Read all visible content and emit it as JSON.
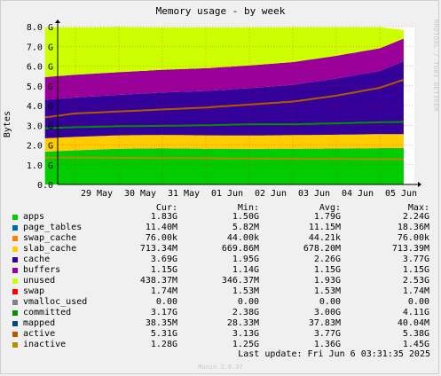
{
  "title": "Memory usage - by week",
  "side_credit": "RRDTOOL / TOBI OETIKER",
  "footer": {
    "last_update": "Last update: Fri Jun  6 03:31:35 2025",
    "version": "Munin 2.0.37"
  },
  "legend_headers": {
    "cur": "Cur:",
    "min": "Min:",
    "avg": "Avg:",
    "max": "Max:"
  },
  "legend": [
    {
      "name": "apps",
      "color": "#00cc00",
      "cur": "1.83G",
      "min": "1.50G",
      "avg": "1.79G",
      "max": "2.24G"
    },
    {
      "name": "page_tables",
      "color": "#0066b3",
      "cur": "11.40M",
      "min": "5.82M",
      "avg": "11.15M",
      "max": "18.36M"
    },
    {
      "name": "swap_cache",
      "color": "#ff8000",
      "cur": "76.00k",
      "min": "44.00k",
      "avg": "44.21k",
      "max": "76.00k"
    },
    {
      "name": "slab_cache",
      "color": "#ffcc00",
      "cur": "713.34M",
      "min": "669.86M",
      "avg": "678.20M",
      "max": "713.39M"
    },
    {
      "name": "cache",
      "color": "#330099",
      "cur": "3.69G",
      "min": "1.95G",
      "avg": "2.26G",
      "max": "3.77G"
    },
    {
      "name": "buffers",
      "color": "#990099",
      "cur": "1.15G",
      "min": "1.14G",
      "avg": "1.15G",
      "max": "1.15G"
    },
    {
      "name": "unused",
      "color": "#ccff00",
      "cur": "438.37M",
      "min": "346.37M",
      "avg": "1.93G",
      "max": "2.53G"
    },
    {
      "name": "swap",
      "color": "#ff0000",
      "cur": "1.74M",
      "min": "1.53M",
      "avg": "1.53M",
      "max": "1.74M"
    },
    {
      "name": "vmalloc_used",
      "color": "#808080",
      "cur": "0.00",
      "min": "0.00",
      "avg": "0.00",
      "max": "0.00"
    },
    {
      "name": "committed",
      "color": "#008f00",
      "cur": "3.17G",
      "min": "2.38G",
      "avg": "3.00G",
      "max": "4.11G"
    },
    {
      "name": "mapped",
      "color": "#00487d",
      "cur": "38.35M",
      "min": "28.33M",
      "avg": "37.83M",
      "max": "40.04M"
    },
    {
      "name": "active",
      "color": "#b35a00",
      "cur": "5.31G",
      "min": "3.13G",
      "avg": "3.77G",
      "max": "5.38G"
    },
    {
      "name": "inactive",
      "color": "#b38f00",
      "cur": "1.28G",
      "min": "1.25G",
      "avg": "1.36G",
      "max": "1.45G"
    }
  ],
  "chart_data": {
    "type": "area",
    "title": "Memory usage - by week",
    "ylabel": "Bytes",
    "ylim": [
      0,
      8
    ],
    "y_unit": "G",
    "yticks": [
      "0.0",
      "1.0 G",
      "2.0 G",
      "3.0 G",
      "4.0 G",
      "5.0 G",
      "6.0 G",
      "7.0 G",
      "8.0 G"
    ],
    "xticks": [
      "29 May",
      "30 May",
      "31 May",
      "01 Jun",
      "02 Jun",
      "03 Jun",
      "04 Jun",
      "05 Jun"
    ],
    "x_days": [
      -0.7,
      0,
      1,
      2,
      3,
      4,
      5,
      6,
      7,
      7.55
    ],
    "stacked_series": [
      {
        "name": "apps",
        "color": "#00cc00",
        "values": [
          1.65,
          1.72,
          1.8,
          1.82,
          1.8,
          1.79,
          1.8,
          1.81,
          1.83,
          1.83
        ]
      },
      {
        "name": "page_tables",
        "color": "#0066b3",
        "values": [
          0.011,
          0.011,
          0.011,
          0.011,
          0.011,
          0.011,
          0.011,
          0.011,
          0.011,
          0.011
        ]
      },
      {
        "name": "swap_cache",
        "color": "#ff8000",
        "values": [
          0.0001,
          0.0001,
          0.0001,
          0.0001,
          0.0001,
          0.0001,
          0.0001,
          0.0001,
          0.0001,
          0.0001
        ]
      },
      {
        "name": "slab_cache",
        "color": "#ffcc00",
        "values": [
          0.68,
          0.68,
          0.68,
          0.68,
          0.68,
          0.68,
          0.69,
          0.7,
          0.71,
          0.71
        ]
      },
      {
        "name": "cache",
        "color": "#330099",
        "values": [
          1.95,
          2.0,
          2.05,
          2.15,
          2.25,
          2.4,
          2.55,
          2.85,
          3.2,
          3.69
        ]
      },
      {
        "name": "buffers",
        "color": "#990099",
        "values": [
          1.15,
          1.15,
          1.15,
          1.15,
          1.15,
          1.15,
          1.15,
          1.15,
          1.15,
          1.15
        ]
      },
      {
        "name": "unused",
        "color": "#ccff00",
        "values": [
          2.53,
          2.4,
          2.29,
          2.15,
          2.07,
          1.93,
          1.77,
          1.45,
          1.07,
          0.44
        ]
      }
    ],
    "line_series": [
      {
        "name": "committed",
        "color": "#008f00",
        "values": [
          2.85,
          2.9,
          2.95,
          2.97,
          3.0,
          3.05,
          3.05,
          3.1,
          3.15,
          3.17
        ]
      },
      {
        "name": "active",
        "color": "#b35a00",
        "values": [
          3.4,
          3.6,
          3.7,
          3.8,
          3.9,
          4.05,
          4.2,
          4.5,
          4.9,
          5.31
        ]
      },
      {
        "name": "inactive",
        "color": "#b38f00",
        "values": [
          1.36,
          1.36,
          1.35,
          1.34,
          1.33,
          1.31,
          1.3,
          1.29,
          1.28,
          1.28
        ]
      }
    ]
  }
}
